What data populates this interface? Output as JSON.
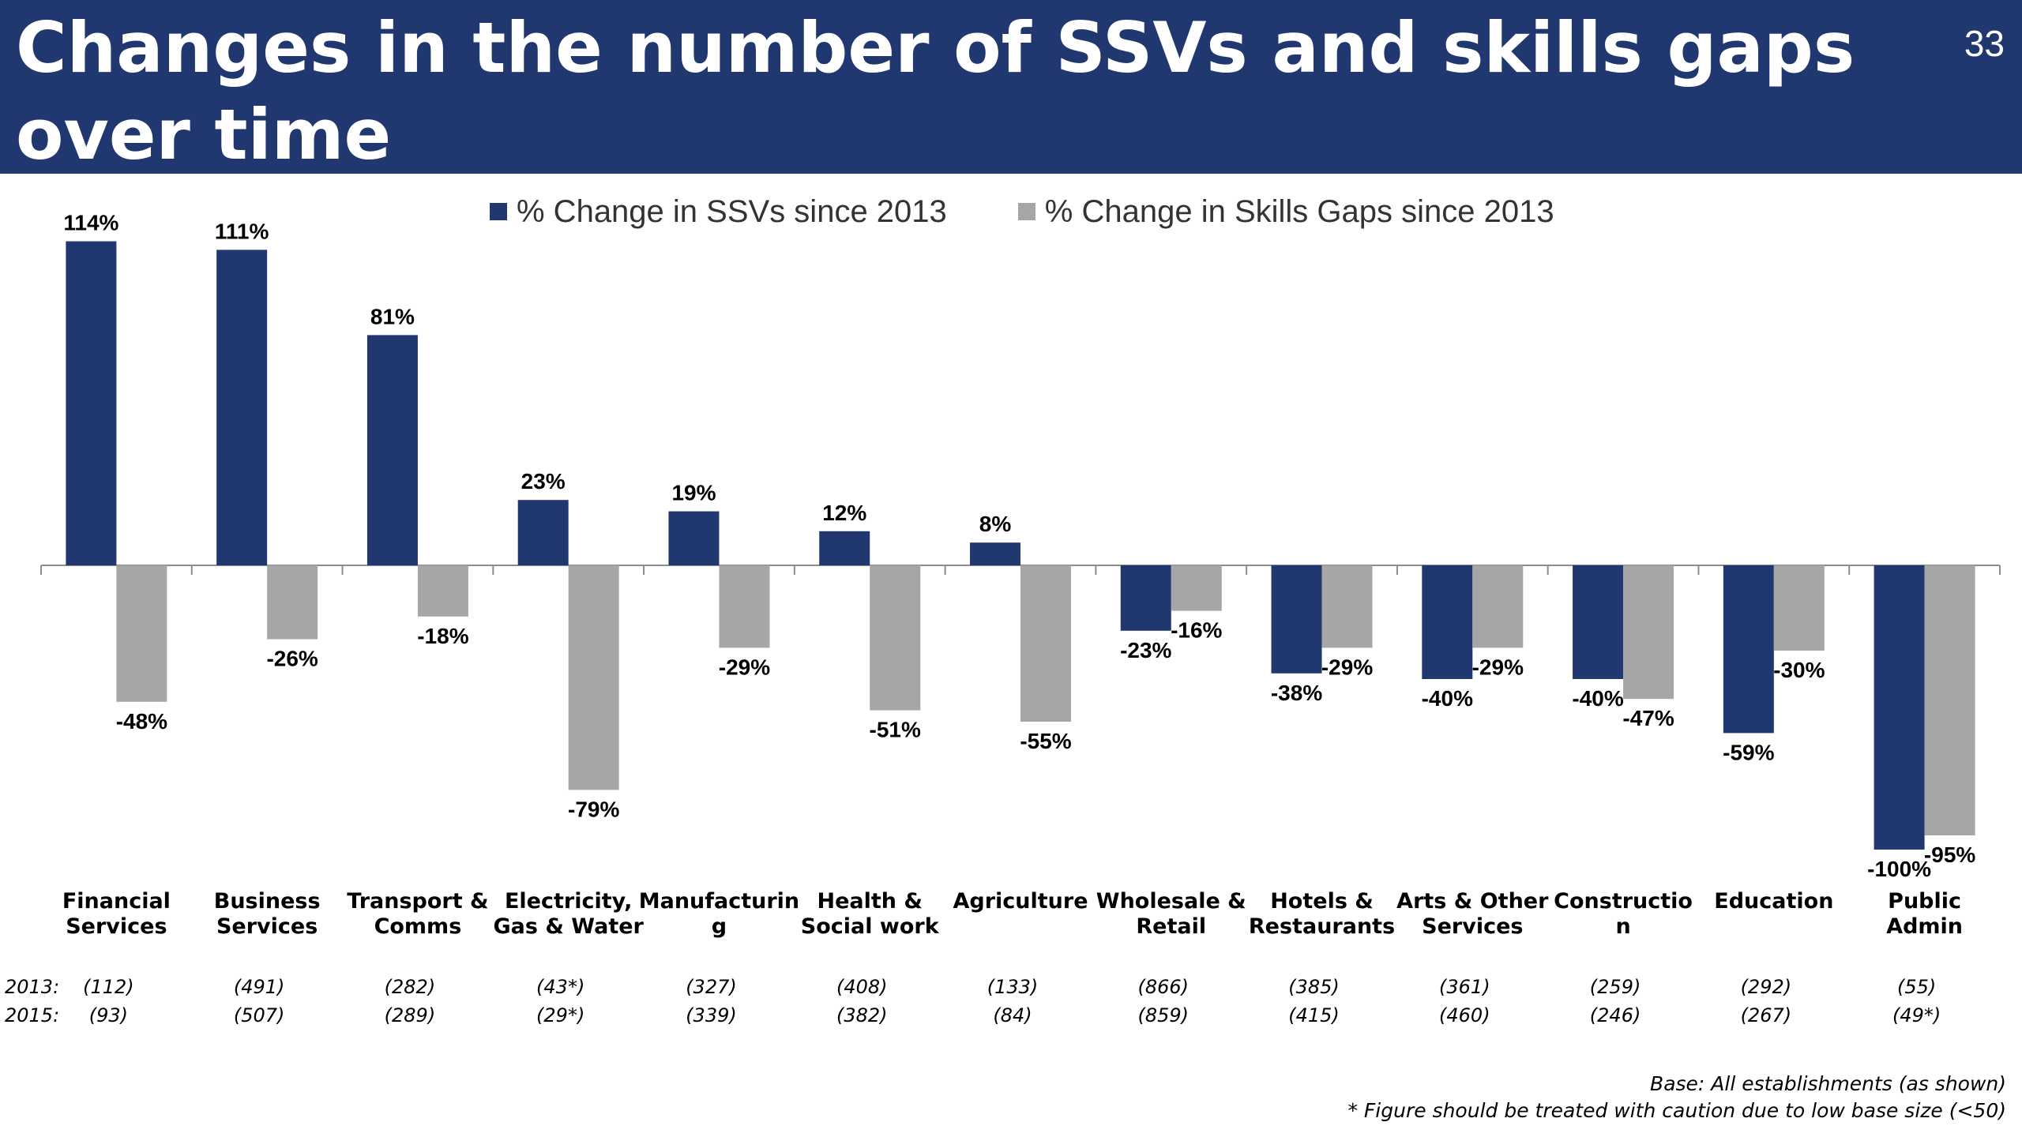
{
  "header": {
    "title": "Changes in the number of SSVs and skills gaps over time",
    "slide_number": "33"
  },
  "colors": {
    "header_bg": "#21376f",
    "ssv": "#21376f",
    "skills_gap": "#a6a6a6"
  },
  "chart_data": {
    "type": "bar",
    "categories": [
      [
        "Financial",
        "Services"
      ],
      [
        "Business",
        "Services"
      ],
      [
        "Transport &",
        "Comms"
      ],
      [
        "Electricity,",
        "Gas & Water"
      ],
      [
        "Manufacturin",
        "g"
      ],
      [
        "Health &",
        "Social work"
      ],
      [
        "Agriculture"
      ],
      [
        "Wholesale &",
        "Retail"
      ],
      [
        "Hotels &",
        "Restaurants"
      ],
      [
        "Arts & Other",
        "Services"
      ],
      [
        "Constructio",
        "n"
      ],
      [
        "Education"
      ],
      [
        "Public",
        "Admin"
      ]
    ],
    "series": [
      {
        "name": "% Change in SSVs since 2013",
        "values": [
          114,
          111,
          81,
          23,
          19,
          12,
          8,
          -23,
          -38,
          -40,
          -40,
          -59,
          -100
        ],
        "labels": [
          "114%",
          "111%",
          "81%",
          "23%",
          "19%",
          "12%",
          "8%",
          "-23%",
          "-38%",
          "-40%",
          "-40%",
          "-59%",
          "-100%"
        ]
      },
      {
        "name": "% Change in Skills Gaps since 2013",
        "values": [
          -48,
          -26,
          -18,
          -79,
          -29,
          -51,
          -55,
          -16,
          -29,
          -29,
          -47,
          -30,
          -95
        ],
        "labels": [
          "-48%",
          "-26%",
          "-18%",
          "-79%",
          "-29%",
          "-51%",
          "-55%",
          "-16%",
          "-29%",
          "-29%",
          "-47%",
          "-30%",
          "-95%"
        ]
      }
    ],
    "ylim": [
      -100,
      114
    ],
    "legend_position": "top",
    "grid": false,
    "base_sizes": {
      "rows": [
        {
          "label": "2013:",
          "values": [
            "(112)",
            "(491)",
            "(282)",
            "(43*)",
            "(327)",
            "(408)",
            "(133)",
            "(866)",
            "(385)",
            "(361)",
            "(259)",
            "(292)",
            "(55)"
          ]
        },
        {
          "label": "2015:",
          "values": [
            "(93)",
            "(507)",
            "(289)",
            "(29*)",
            "(339)",
            "(382)",
            "(84)",
            "(859)",
            "(415)",
            "(460)",
            "(246)",
            "(267)",
            "(49*)"
          ]
        }
      ]
    }
  },
  "footnotes": {
    "base": "Base: All establishments (as shown)",
    "caution": "* Figure should be treated with caution due to low base size (<50)"
  }
}
